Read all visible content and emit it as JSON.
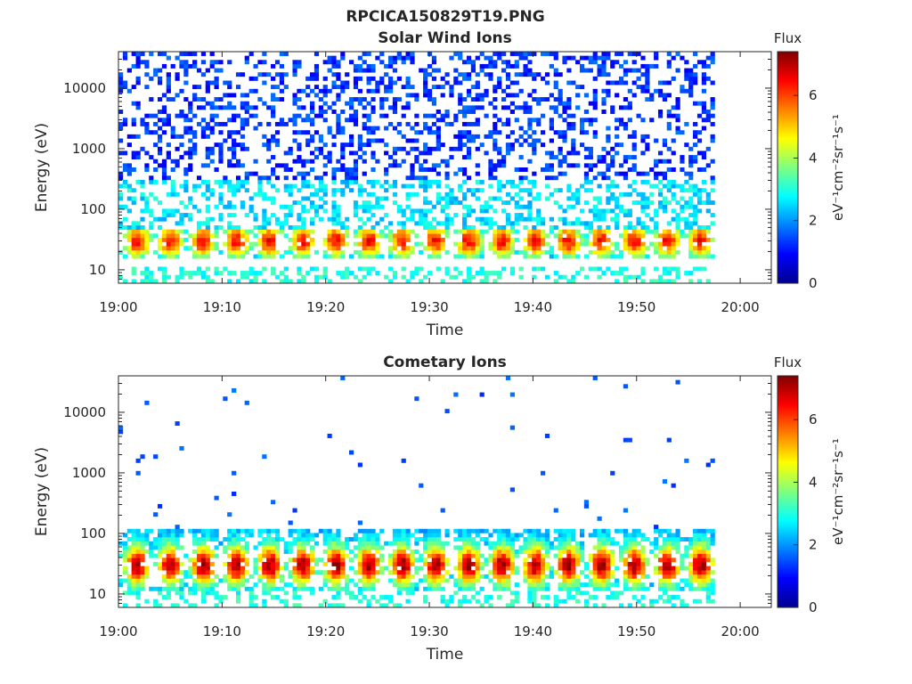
{
  "figure_title": "RPCICA150829T19.PNG",
  "colors": {
    "colormap": [
      "#00008f",
      "#0000ff",
      "#0080ff",
      "#00ffff",
      "#80ff80",
      "#ffff00",
      "#ff8000",
      "#ff0000",
      "#800000"
    ]
  },
  "chart_data": [
    {
      "type": "heatmap",
      "title": "Solar Wind Ions",
      "xlabel": "Time",
      "ylabel": "Energy (eV)",
      "x_ticks": [
        "19:00",
        "19:10",
        "19:20",
        "19:30",
        "19:40",
        "19:50",
        "20:00"
      ],
      "x_range_minutes": [
        0,
        63
      ],
      "data_end_minute": 57.5,
      "y_scale": "log",
      "y_ticks": [
        "10",
        "100",
        "1000",
        "10000"
      ],
      "y_range": [
        6,
        40000
      ],
      "colorbar": {
        "title": "Flux",
        "label": "eV⁻¹cm⁻²sr⁻¹s⁻¹",
        "range": [
          0,
          7.4
        ],
        "ticks": [
          "0",
          "2",
          "4",
          "6"
        ]
      },
      "bands": [
        {
          "energy_range": [
            6,
            12
          ],
          "flux": 3.0,
          "coverage": "sparse"
        },
        {
          "energy_range": [
            16,
            45
          ],
          "flux": 5.5,
          "coverage": "pulsed"
        },
        {
          "energy_range": [
            45,
            300
          ],
          "flux": 2.5,
          "coverage": "scattered"
        },
        {
          "energy_range": [
            300,
            40000
          ],
          "flux": 1.2,
          "coverage": "scattered"
        }
      ],
      "peak_energy_eV": 30,
      "peak_flux": 6.5,
      "pulse_period_minutes": 3.2
    },
    {
      "type": "heatmap",
      "title": "Cometary Ions",
      "xlabel": "Time",
      "ylabel": "Energy (eV)",
      "x_ticks": [
        "19:00",
        "19:10",
        "19:20",
        "19:30",
        "19:40",
        "19:50",
        "20:00"
      ],
      "x_range_minutes": [
        0,
        63
      ],
      "data_end_minute": 57.5,
      "y_scale": "log",
      "y_ticks": [
        "10",
        "100",
        "1000",
        "10000"
      ],
      "y_range": [
        6,
        40000
      ],
      "colorbar": {
        "title": "Flux",
        "label": "eV⁻¹cm⁻²sr⁻¹s⁻¹",
        "range": [
          0,
          7.4
        ],
        "ticks": [
          "0",
          "2",
          "4",
          "6"
        ]
      },
      "bands": [
        {
          "energy_range": [
            6,
            12
          ],
          "flux": 3.0,
          "coverage": "sparse"
        },
        {
          "energy_range": [
            12,
            45
          ],
          "flux": 6.5,
          "coverage": "pulsed"
        },
        {
          "energy_range": [
            45,
            120
          ],
          "flux": 3.5,
          "coverage": "pulsed"
        },
        {
          "energy_range": [
            120,
            40000
          ],
          "flux": 1.2,
          "coverage": "rare"
        }
      ],
      "peak_energy_eV": 30,
      "peak_flux": 7.2,
      "pulse_period_minutes": 3.2
    }
  ]
}
